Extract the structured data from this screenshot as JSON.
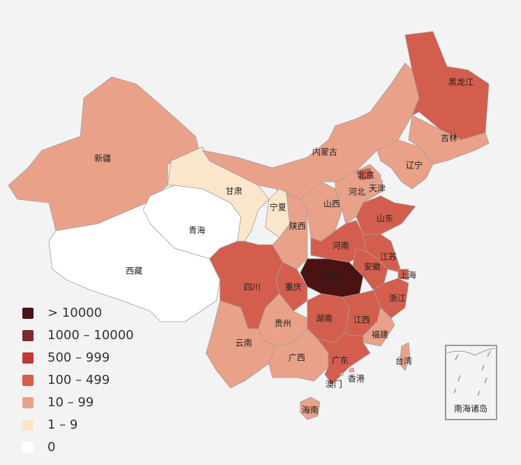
{
  "map": {
    "legend": [
      {
        "label": "> 10000",
        "color": "#4a1212"
      },
      {
        "label": "1000 – 10000",
        "color": "#7d2a2a"
      },
      {
        "label": "500 – 999",
        "color": "#bf3b33"
      },
      {
        "label": "100 – 499",
        "color": "#d35e4d"
      },
      {
        "label": "10 – 99",
        "color": "#e9a189"
      },
      {
        "label": "1 – 9",
        "color": "#fbe6cc"
      },
      {
        "label": "0",
        "color": "#ffffff"
      }
    ],
    "regions": [
      {
        "name": "新疆",
        "color": "#e9a189"
      },
      {
        "name": "西藏",
        "color": "#ffffff"
      },
      {
        "name": "青海",
        "color": "#ffffff"
      },
      {
        "name": "甘肃",
        "color": "#fbe6cc"
      },
      {
        "name": "内蒙古",
        "color": "#e9a189"
      },
      {
        "name": "黑龙江",
        "color": "#d35e4d"
      },
      {
        "name": "吉林",
        "color": "#e9a189"
      },
      {
        "name": "辽宁",
        "color": "#e9a189"
      },
      {
        "name": "宁夏",
        "color": "#fbe6cc"
      },
      {
        "name": "陕西",
        "color": "#e9a189"
      },
      {
        "name": "山西",
        "color": "#e9a189"
      },
      {
        "name": "河北",
        "color": "#e9a189"
      },
      {
        "name": "北京",
        "color": "#d35e4d"
      },
      {
        "name": "天津",
        "color": "#e9a189"
      },
      {
        "name": "山东",
        "color": "#d35e4d"
      },
      {
        "name": "河南",
        "color": "#d35e4d"
      },
      {
        "name": "江苏",
        "color": "#d35e4d"
      },
      {
        "name": "安徽",
        "color": "#d35e4d"
      },
      {
        "name": "上海",
        "color": "#d35e4d"
      },
      {
        "name": "浙江",
        "color": "#d35e4d"
      },
      {
        "name": "湖北",
        "color": "#4a1212"
      },
      {
        "name": "重庆",
        "color": "#d35e4d"
      },
      {
        "name": "四川",
        "color": "#d35e4d"
      },
      {
        "name": "贵州",
        "color": "#e9a189"
      },
      {
        "name": "湖南",
        "color": "#d35e4d"
      },
      {
        "name": "江西",
        "color": "#d35e4d"
      },
      {
        "name": "福建",
        "color": "#e9a189"
      },
      {
        "name": "云南",
        "color": "#e9a189"
      },
      {
        "name": "广西",
        "color": "#e9a189"
      },
      {
        "name": "广东",
        "color": "#d35e4d"
      },
      {
        "name": "台湾",
        "color": "#e9a189"
      },
      {
        "name": "香港",
        "color": "#e9a189"
      },
      {
        "name": "澳门",
        "color": "#e9a189"
      },
      {
        "name": "海南",
        "color": "#e9a189"
      }
    ],
    "inset_label": "南海诸岛"
  }
}
